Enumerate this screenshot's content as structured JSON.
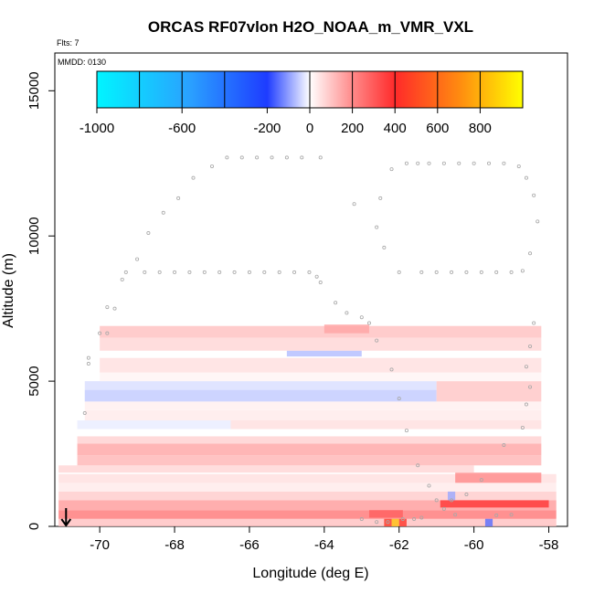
{
  "chart_data": {
    "type": "heatmap",
    "title": "ORCAS RF07vlon H2O_NOAA_m_VMR_VXL",
    "flts_label": "Flts: 7",
    "mmdd_label": "MMDD: 0130",
    "xlabel": "Longitude (deg E)",
    "ylabel": "Altitude (m)",
    "xlim": [
      -71.2,
      -57.5
    ],
    "ylim": [
      0,
      16300
    ],
    "x_ticks": [
      -70,
      -68,
      -66,
      -64,
      -62,
      -60,
      -58
    ],
    "x_tick_labels": [
      "-70",
      "-68",
      "-66",
      "-64",
      "-62",
      "-60",
      "-58"
    ],
    "y_ticks": [
      0,
      5000,
      10000,
      15000
    ],
    "y_tick_labels": [
      "0",
      "5000",
      "10000",
      "15000"
    ],
    "colorbar": {
      "range": [
        -1000,
        1000
      ],
      "tick_values": [
        -1000,
        -600,
        -200,
        0,
        200,
        400,
        600,
        800
      ],
      "tick_labels": [
        "-1000",
        "-600",
        "-200",
        "0",
        "200",
        "400",
        "600",
        "800"
      ],
      "colors": {
        "min": "#00f5ff",
        "neg_mid": "#1e3cff",
        "zero": "#ffffff",
        "pos_mid": "#ff2a2a",
        "max": "#ffff00"
      }
    },
    "cells": [
      {
        "x": [
          -71.1,
          -57.8
        ],
        "y": [
          0,
          260
        ],
        "v": 120
      },
      {
        "x": [
          -71.1,
          -57.8
        ],
        "y": [
          260,
          560
        ],
        "v": 260
      },
      {
        "x": [
          -71.1,
          -57.8
        ],
        "y": [
          560,
          900
        ],
        "v": 190
      },
      {
        "x": [
          -71.1,
          -57.8
        ],
        "y": [
          900,
          1200
        ],
        "v": 100
      },
      {
        "x": [
          -60.9,
          -58.0
        ],
        "y": [
          650,
          900
        ],
        "v": 380
      },
      {
        "x": [
          -62.8,
          -61.9
        ],
        "y": [
          300,
          560
        ],
        "v": 300
      },
      {
        "x": [
          -62.4,
          -62.2
        ],
        "y": [
          0,
          260
        ],
        "v": 440
      },
      {
        "x": [
          -62.2,
          -62.0
        ],
        "y": [
          0,
          260
        ],
        "v": 820
      },
      {
        "x": [
          -62.0,
          -61.8
        ],
        "y": [
          0,
          260
        ],
        "v": 430
      },
      {
        "x": [
          -59.7,
          -59.5
        ],
        "y": [
          0,
          260
        ],
        "v": -300
      },
      {
        "x": [
          -60.7,
          -60.5
        ],
        "y": [
          900,
          1200
        ],
        "v": -180
      },
      {
        "x": [
          -71.1,
          -57.8
        ],
        "y": [
          1200,
          1500
        ],
        "v": 40
      },
      {
        "x": [
          -71.1,
          -57.8
        ],
        "y": [
          1500,
          1800
        ],
        "v": 60
      },
      {
        "x": [
          -60.5,
          -58.2
        ],
        "y": [
          1500,
          1850
        ],
        "v": 220
      },
      {
        "x": [
          -71.1,
          -60.0
        ],
        "y": [
          1850,
          2100
        ],
        "v": 80
      },
      {
        "x": [
          -70.6,
          -58.2
        ],
        "y": [
          2100,
          2450
        ],
        "v": 140
      },
      {
        "x": [
          -70.6,
          -58.2
        ],
        "y": [
          2450,
          2850
        ],
        "v": 170
      },
      {
        "x": [
          -70.6,
          -58.2
        ],
        "y": [
          2850,
          3100
        ],
        "v": 90
      },
      {
        "x": [
          -70.6,
          -66.5
        ],
        "y": [
          3350,
          3650
        ],
        "v": -40
      },
      {
        "x": [
          -66.5,
          -58.2
        ],
        "y": [
          3350,
          3650
        ],
        "v": 60
      },
      {
        "x": [
          -70.4,
          -58.2
        ],
        "y": [
          3650,
          4000
        ],
        "v": 40
      },
      {
        "x": [
          -70.4,
          -58.2
        ],
        "y": [
          4000,
          4300
        ],
        "v": 30
      },
      {
        "x": [
          -70.4,
          -61.0
        ],
        "y": [
          4300,
          4700
        ],
        "v": -110
      },
      {
        "x": [
          -70.4,
          -61.0
        ],
        "y": [
          4700,
          5000
        ],
        "v": -70
      },
      {
        "x": [
          -61.0,
          -58.2
        ],
        "y": [
          4300,
          5000
        ],
        "v": 110
      },
      {
        "x": [
          -70.0,
          -58.2
        ],
        "y": [
          5000,
          5300
        ],
        "v": 20
      },
      {
        "x": [
          -70.0,
          -58.2
        ],
        "y": [
          5300,
          5800
        ],
        "v": 60
      },
      {
        "x": [
          -65.0,
          -63.0
        ],
        "y": [
          5850,
          6050
        ],
        "v": -140
      },
      {
        "x": [
          -70.0,
          -58.2
        ],
        "y": [
          6050,
          6500
        ],
        "v": 80
      },
      {
        "x": [
          -70.0,
          -58.2
        ],
        "y": [
          6500,
          6900
        ],
        "v": 120
      },
      {
        "x": [
          -64.0,
          -62.8
        ],
        "y": [
          6650,
          6950
        ],
        "v": 170
      }
    ],
    "flight_track": [
      [
        -70.4,
        3900
      ],
      [
        -70.3,
        5600
      ],
      [
        -70.3,
        5800
      ],
      [
        -70.0,
        6650
      ],
      [
        -69.8,
        6650
      ],
      [
        -69.8,
        7550
      ],
      [
        -69.6,
        7500
      ],
      [
        -69.4,
        8500
      ],
      [
        -69.3,
        8750
      ],
      [
        -69.0,
        9200
      ],
      [
        -68.7,
        10100
      ],
      [
        -68.3,
        10800
      ],
      [
        -67.9,
        11300
      ],
      [
        -67.5,
        12000
      ],
      [
        -67.0,
        12400
      ],
      [
        -66.6,
        12700
      ],
      [
        -66.2,
        12700
      ],
      [
        -65.8,
        12700
      ],
      [
        -65.4,
        12700
      ],
      [
        -65.0,
        12700
      ],
      [
        -64.6,
        12700
      ],
      [
        -64.1,
        12700
      ],
      [
        -68.8,
        8750
      ],
      [
        -68.4,
        8750
      ],
      [
        -68.0,
        8750
      ],
      [
        -67.6,
        8750
      ],
      [
        -67.2,
        8750
      ],
      [
        -66.8,
        8750
      ],
      [
        -66.4,
        8750
      ],
      [
        -66.0,
        8750
      ],
      [
        -65.6,
        8750
      ],
      [
        -65.2,
        8750
      ],
      [
        -64.8,
        8750
      ],
      [
        -64.4,
        8750
      ],
      [
        -64.2,
        8600
      ],
      [
        -64.1,
        8400
      ],
      [
        -63.7,
        7700
      ],
      [
        -63.4,
        7350
      ],
      [
        -63.0,
        7200
      ],
      [
        -62.8,
        7000
      ],
      [
        -62.6,
        6400
      ],
      [
        -62.2,
        5400
      ],
      [
        -62.0,
        4400
      ],
      [
        -61.8,
        3300
      ],
      [
        -61.5,
        2100
      ],
      [
        -61.2,
        1400
      ],
      [
        -61.0,
        900
      ],
      [
        -60.8,
        600
      ],
      [
        -60.5,
        400
      ],
      [
        -62.5,
        11300
      ],
      [
        -62.2,
        12300
      ],
      [
        -61.8,
        12500
      ],
      [
        -61.5,
        12500
      ],
      [
        -61.2,
        12500
      ],
      [
        -60.8,
        12500
      ],
      [
        -60.4,
        12500
      ],
      [
        -60.0,
        12500
      ],
      [
        -59.6,
        12500
      ],
      [
        -59.2,
        12500
      ],
      [
        -58.8,
        12400
      ],
      [
        -58.6,
        12000
      ],
      [
        -58.4,
        11400
      ],
      [
        -58.3,
        10500
      ],
      [
        -58.5,
        9400
      ],
      [
        -58.7,
        8800
      ],
      [
        -59.0,
        8750
      ],
      [
        -59.4,
        8750
      ],
      [
        -59.8,
        8750
      ],
      [
        -60.2,
        8750
      ],
      [
        -60.6,
        8750
      ],
      [
        -61.0,
        8750
      ],
      [
        -61.4,
        8750
      ],
      [
        -62.0,
        8750
      ],
      [
        -62.4,
        9600
      ],
      [
        -62.6,
        10300
      ],
      [
        -63.2,
        11100
      ],
      [
        -58.4,
        7000
      ],
      [
        -58.5,
        6200
      ],
      [
        -58.6,
        5500
      ],
      [
        -58.5,
        4800
      ],
      [
        -58.6,
        4200
      ],
      [
        -58.7,
        3400
      ],
      [
        -59.2,
        2800
      ],
      [
        -59.8,
        1600
      ],
      [
        -60.2,
        1100
      ],
      [
        -60.6,
        900
      ],
      [
        -59.0,
        400
      ],
      [
        -59.4,
        380
      ],
      [
        -61.4,
        300
      ],
      [
        -61.6,
        250
      ],
      [
        -61.9,
        250
      ],
      [
        -62.3,
        150
      ],
      [
        -62.6,
        150
      ],
      [
        -63.0,
        250
      ]
    ],
    "arrow_longitude": -70.9,
    "grid": false,
    "legend": "top"
  }
}
